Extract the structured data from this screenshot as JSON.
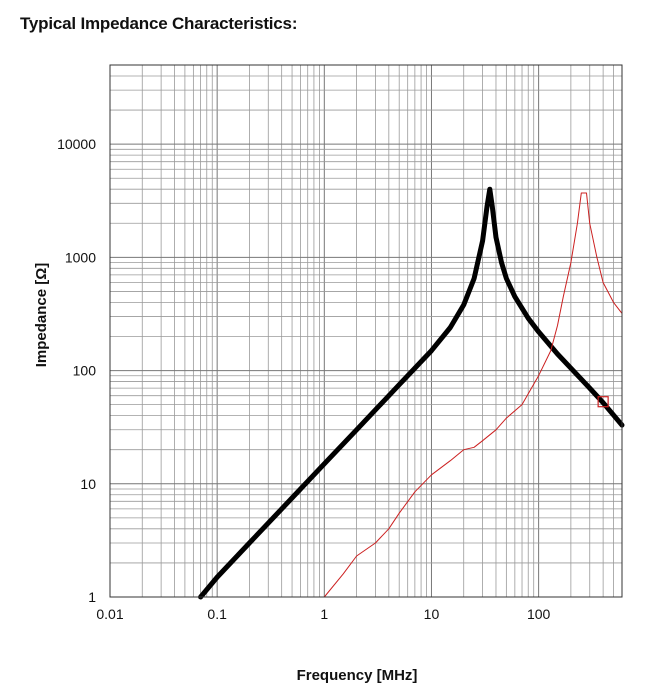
{
  "title": "Typical Impedance Characteristics:",
  "chart_data": {
    "type": "line",
    "title": "Typical Impedance Characteristics:",
    "xlabel": "Frequency [MHz]",
    "ylabel": "Impedance [Ω]",
    "x_scale": "log",
    "y_scale": "log",
    "xlim": [
      0.01,
      600
    ],
    "ylim": [
      1,
      50000
    ],
    "grid": true,
    "x_ticks": [
      "0.01",
      "0.1",
      "1",
      "10",
      "100"
    ],
    "x_tick_values": [
      0.01,
      0.1,
      1,
      10,
      100
    ],
    "y_ticks": [
      "1",
      "10",
      "100",
      "1000",
      "10000"
    ],
    "y_tick_values": [
      1,
      10,
      100,
      1000,
      10000
    ],
    "series": [
      {
        "color": "#000000",
        "x": [
          0.07,
          0.1,
          0.2,
          0.5,
          1,
          2,
          5,
          10,
          15,
          20,
          25,
          30,
          33,
          35,
          37,
          40,
          45,
          50,
          60,
          80,
          100,
          150,
          200,
          300,
          400,
          600
        ],
        "y": [
          1,
          1.5,
          3,
          7.5,
          15,
          30,
          75,
          150,
          240,
          380,
          650,
          1400,
          2800,
          4000,
          2800,
          1500,
          900,
          650,
          450,
          290,
          220,
          140,
          105,
          70,
          52,
          33
        ]
      },
      {
        "color": "#cc2020",
        "x": [
          1,
          1.5,
          2,
          3,
          4,
          5,
          7,
          10,
          15,
          20,
          25,
          30,
          40,
          50,
          70,
          100,
          130,
          150,
          170,
          200,
          230,
          250,
          280,
          300,
          350,
          400,
          500,
          600
        ],
        "y": [
          1,
          1.6,
          2.3,
          3,
          4,
          5.5,
          8.5,
          12,
          16,
          20,
          21,
          24,
          30,
          38,
          50,
          90,
          150,
          250,
          450,
          900,
          2000,
          3700,
          3700,
          2000,
          1000,
          600,
          400,
          320
        ]
      }
    ],
    "annotations": []
  }
}
